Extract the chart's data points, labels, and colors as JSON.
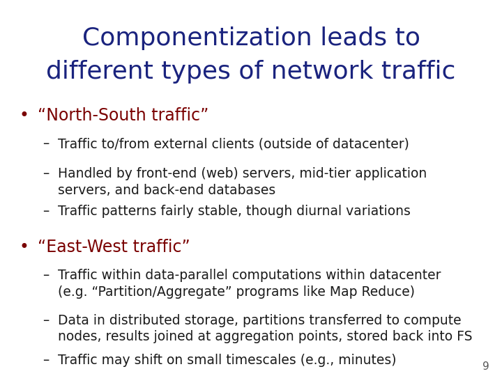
{
  "title_line1": "Componentization leads to",
  "title_line2": "different types of network traffic",
  "title_color": "#1a237e",
  "bullet_color": "#7a0000",
  "sub_color": "#1a1a1a",
  "background_color": "#ffffff",
  "page_number": "9",
  "bullet1": "“North-South traffic”",
  "bullet1_subs": [
    "Traffic to/from external clients (outside of datacenter)",
    "Handled by front-end (web) servers, mid-tier application\nservers, and back-end databases",
    "Traffic patterns fairly stable, though diurnal variations"
  ],
  "bullet2": "“East-West traffic”",
  "bullet2_subs": [
    "Traffic within data-parallel computations within datacenter\n(e.g. “Partition/Aggregate” programs like Map Reduce)",
    "Data in distributed storage, partitions transferred to compute\nnodes, results joined at aggregation points, stored back into FS",
    "Traffic may shift on small timescales (e.g., minutes)"
  ],
  "title_fontsize": 26,
  "bullet_fontsize": 17,
  "sub_fontsize": 13.5,
  "page_num_fontsize": 11
}
